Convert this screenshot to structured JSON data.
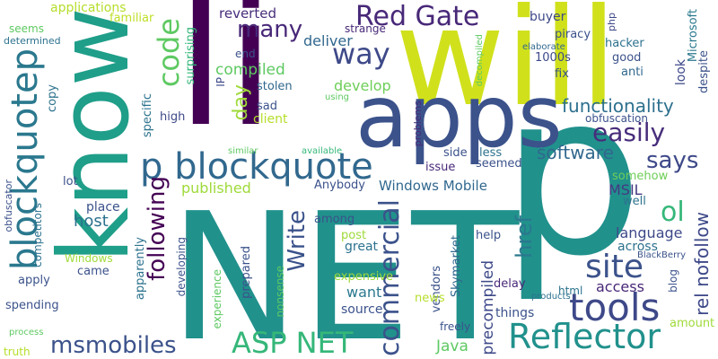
{
  "words": [
    {
      "id": "net",
      "text": "NET",
      "color": "#21918c"
    },
    {
      "id": "p-big",
      "text": "p",
      "color": "#21918c"
    },
    {
      "id": "will",
      "text": "will",
      "color": "#d0e11c"
    },
    {
      "id": "li",
      "text": "li",
      "color": "#440154"
    },
    {
      "id": "apps",
      "text": "apps",
      "color": "#3b528b"
    },
    {
      "id": "know",
      "text": "know",
      "color": "#1f9e89"
    },
    {
      "id": "p-blockquote",
      "text": "p blockquote",
      "color": "#31688e"
    },
    {
      "id": "blockquotep",
      "text": "blockquotep",
      "color": "#2a788e"
    },
    {
      "id": "reflector",
      "text": "Reflector",
      "color": "#21918c"
    },
    {
      "id": "tools",
      "text": "tools",
      "color": "#3e4989"
    },
    {
      "id": "site",
      "text": "site",
      "color": "#3b528b"
    },
    {
      "id": "asp-net",
      "text": "ASP NET",
      "color": "#35b779"
    },
    {
      "id": "msmobiles",
      "text": "msmobiles",
      "color": "#3b528b"
    },
    {
      "id": "red-gate",
      "text": "Red Gate",
      "color": "#482878"
    },
    {
      "id": "code",
      "text": "code",
      "color": "#5ec962"
    },
    {
      "id": "way",
      "text": "way",
      "color": "#3e4989"
    },
    {
      "id": "many",
      "text": "many",
      "color": "#482878"
    },
    {
      "id": "easily",
      "text": "easily",
      "color": "#472d7b"
    },
    {
      "id": "says",
      "text": "says",
      "color": "#3e4989"
    },
    {
      "id": "ol",
      "text": "ol",
      "color": "#35b779"
    },
    {
      "id": "functionality",
      "text": "functionality",
      "color": "#2d708e"
    },
    {
      "id": "software",
      "text": "software",
      "color": "#31688e"
    },
    {
      "id": "commercial",
      "text": "commercial",
      "color": "#3b528b"
    },
    {
      "id": "write",
      "text": "Write",
      "color": "#3b528b"
    },
    {
      "id": "following",
      "text": "following",
      "color": "#440154"
    },
    {
      "id": "href",
      "text": "href",
      "color": "#2a788e"
    },
    {
      "id": "rel-nofollow",
      "text": "rel nofollow",
      "color": "#3e4989"
    },
    {
      "id": "day",
      "text": "day",
      "color": "#9fda3a"
    },
    {
      "id": "compiled",
      "text": "compiled",
      "color": "#5ec962"
    },
    {
      "id": "develop",
      "text": "develop",
      "color": "#6ece58"
    },
    {
      "id": "deliver",
      "text": "deliver",
      "color": "#31688e"
    },
    {
      "id": "windows-mobile",
      "text": "Windows Mobile",
      "color": "#31688e"
    },
    {
      "id": "published",
      "text": "published",
      "color": "#9fda3a"
    },
    {
      "id": "host",
      "text": "host",
      "color": "#2c728e"
    },
    {
      "id": "java",
      "text": "Java",
      "color": "#5ec962"
    },
    {
      "id": "access",
      "text": "access",
      "color": "#482878"
    },
    {
      "id": "language",
      "text": "language",
      "color": "#3e4989"
    },
    {
      "id": "msil",
      "text": "MSIL",
      "color": "#443983"
    },
    {
      "id": "precompiled",
      "text": "precompiled",
      "color": "#3e4989"
    },
    {
      "id": "want",
      "text": "want",
      "color": "#2a788e"
    },
    {
      "id": "applications",
      "text": "applications",
      "color": "#b5de2b"
    },
    {
      "id": "familiar",
      "text": "familiar",
      "color": "#bddf26"
    },
    {
      "id": "reverted",
      "text": "reverted",
      "color": "#472d7b"
    },
    {
      "id": "buyer",
      "text": "buyer",
      "color": "#3e4989"
    },
    {
      "id": "piracy",
      "text": "piracy",
      "color": "#3b528b"
    },
    {
      "id": "elaborate",
      "text": "elaborate",
      "color": "#31688e"
    },
    {
      "id": "1000s",
      "text": "1000s",
      "color": "#3e4989"
    },
    {
      "id": "hacker",
      "text": "hacker",
      "color": "#2c728e"
    },
    {
      "id": "good",
      "text": "good",
      "color": "#3b528b"
    },
    {
      "id": "fix",
      "text": "fix",
      "color": "#3b528b"
    },
    {
      "id": "anti",
      "text": "anti",
      "color": "#31688e"
    },
    {
      "id": "php",
      "text": "php",
      "color": "#3e4989"
    },
    {
      "id": "microsoft",
      "text": "Microsoft",
      "color": "#2a788e"
    },
    {
      "id": "despite",
      "text": "despite",
      "color": "#3b528b"
    },
    {
      "id": "look",
      "text": "look",
      "color": "#3e4989"
    },
    {
      "id": "obfuscation",
      "text": "obfuscation",
      "color": "#3b528b"
    },
    {
      "id": "decompiled",
      "text": "decompiled",
      "color": "#5ec962"
    },
    {
      "id": "strange",
      "text": "strange",
      "color": "#482878"
    },
    {
      "id": "end",
      "text": "end",
      "color": "#3b528b"
    },
    {
      "id": "ip",
      "text": "IP",
      "color": "#3e4989"
    },
    {
      "id": "stolen",
      "text": "stolen",
      "color": "#31688e"
    },
    {
      "id": "sad",
      "text": "sad",
      "color": "#3b528b"
    },
    {
      "id": "client",
      "text": "client",
      "color": "#b5de2b"
    },
    {
      "id": "using",
      "text": "using",
      "color": "#5ec962"
    },
    {
      "id": "high",
      "text": "high",
      "color": "#3e4989"
    },
    {
      "id": "surprising",
      "text": "surprising",
      "color": "#35b779"
    },
    {
      "id": "specific",
      "text": "specific",
      "color": "#2c728e"
    },
    {
      "id": "problems",
      "text": "problems",
      "color": "#482878"
    },
    {
      "id": "issue",
      "text": "issue",
      "color": "#482878"
    },
    {
      "id": "seemed",
      "text": "seemed",
      "color": "#3b528b"
    },
    {
      "id": "less",
      "text": "less",
      "color": "#2c728e"
    },
    {
      "id": "side",
      "text": "side",
      "color": "#3b528b"
    },
    {
      "id": "somehow",
      "text": "somehow",
      "color": "#6ece58"
    },
    {
      "id": "well",
      "text": "well",
      "color": "#2c728e"
    },
    {
      "id": "across",
      "text": "across",
      "color": "#2c728e"
    },
    {
      "id": "blackberry",
      "text": "BlackBerry",
      "color": "#3b528b"
    },
    {
      "id": "blog",
      "text": "blog",
      "color": "#3b528b"
    },
    {
      "id": "html",
      "text": "html",
      "color": "#2c728e"
    },
    {
      "id": "amount",
      "text": "amount",
      "color": "#9fda3a"
    },
    {
      "id": "products",
      "text": "products",
      "color": "#2c728e"
    },
    {
      "id": "delay",
      "text": "delay",
      "color": "#482878"
    },
    {
      "id": "help",
      "text": "help",
      "color": "#3b528b"
    },
    {
      "id": "skymarket",
      "text": "Skymarket",
      "color": "#31688e"
    },
    {
      "id": "great",
      "text": "great",
      "color": "#2c728e"
    },
    {
      "id": "post",
      "text": "post",
      "color": "#9fda3a"
    },
    {
      "id": "among",
      "text": "among",
      "color": "#3b528b"
    },
    {
      "id": "anybody",
      "text": "Anybody",
      "color": "#3b528b"
    },
    {
      "id": "available",
      "text": "available",
      "color": "#35b779"
    },
    {
      "id": "similar",
      "text": "similar",
      "color": "#5ec962"
    },
    {
      "id": "place",
      "text": "place",
      "color": "#3b528b"
    },
    {
      "id": "prepared",
      "text": "prepared",
      "color": "#3b528b"
    },
    {
      "id": "vendors",
      "text": "vendors",
      "color": "#3b528b"
    },
    {
      "id": "expensive",
      "text": "expensive",
      "color": "#9fda3a"
    },
    {
      "id": "nonsense",
      "text": "nonsense",
      "color": "#5ec962"
    },
    {
      "id": "source",
      "text": "source",
      "color": "#3b528b"
    },
    {
      "id": "things",
      "text": "things",
      "color": "#3b528b"
    },
    {
      "id": "news",
      "text": "news",
      "color": "#b5de2b"
    },
    {
      "id": "freely",
      "text": "freely",
      "color": "#3b528b"
    },
    {
      "id": "experience",
      "text": "experience",
      "color": "#5ec962"
    },
    {
      "id": "developing",
      "text": "developing",
      "color": "#3b528b"
    },
    {
      "id": "apparently",
      "text": "apparently",
      "color": "#2c728e"
    },
    {
      "id": "windows",
      "text": "Windows",
      "color": "#9fda3a"
    },
    {
      "id": "came",
      "text": "came",
      "color": "#3b528b"
    },
    {
      "id": "lot",
      "text": "lot",
      "color": "#3b528b"
    },
    {
      "id": "competitors",
      "text": "competitors",
      "color": "#2c728e"
    },
    {
      "id": "apply",
      "text": "apply",
      "color": "#3b528b"
    },
    {
      "id": "spending",
      "text": "spending",
      "color": "#3b528b"
    },
    {
      "id": "copy",
      "text": "copy",
      "color": "#2c728e"
    },
    {
      "id": "obfuscator",
      "text": "obfuscator",
      "color": "#3b528b"
    },
    {
      "id": "process",
      "text": "process",
      "color": "#5ec962"
    },
    {
      "id": "truth",
      "text": "truth",
      "color": "#b5de2b"
    },
    {
      "id": "seems",
      "text": "seems",
      "color": "#5ec962"
    },
    {
      "id": "determined",
      "text": "determined",
      "color": "#2c728e"
    }
  ]
}
